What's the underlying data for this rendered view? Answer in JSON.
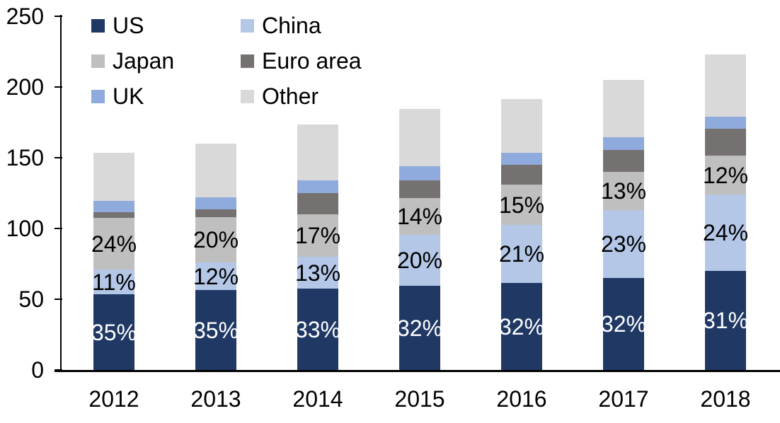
{
  "chart_data": {
    "type": "bar",
    "stacked": true,
    "title": "",
    "xlabel": "",
    "ylabel": "",
    "categories": [
      "2012",
      "2013",
      "2014",
      "2015",
      "2016",
      "2017",
      "2018"
    ],
    "series": [
      {
        "name": "US",
        "color": "#1F3864",
        "values": [
          53.5,
          56.5,
          57.5,
          59.5,
          61.5,
          65,
          70
        ],
        "labels": [
          "35%",
          "35%",
          "33%",
          "32%",
          "32%",
          "32%",
          "31%"
        ],
        "label_color": "#FFFFFF"
      },
      {
        "name": "China",
        "color": "#B4C7E7",
        "values": [
          17.5,
          19.5,
          22.5,
          36,
          41,
          48,
          54
        ],
        "labels": [
          "11%",
          "12%",
          "13%",
          "20%",
          "21%",
          "23%",
          "24%"
        ],
        "label_color": "#000000"
      },
      {
        "name": "Japan",
        "color": "#BFBFBF",
        "values": [
          36.5,
          32,
          30,
          26,
          28.5,
          27,
          27.5
        ],
        "labels": [
          "24%",
          "20%",
          "17%",
          "14%",
          "15%",
          "13%",
          "12%"
        ],
        "label_color": "#000000"
      },
      {
        "name": "Euro area",
        "color": "#767171",
        "values": [
          4,
          5.5,
          15,
          12.5,
          14,
          15.5,
          19
        ],
        "labels": null,
        "label_color": null
      },
      {
        "name": "UK",
        "color": "#8FAADC",
        "values": [
          8,
          8.5,
          9,
          10,
          8.5,
          9,
          8.5
        ],
        "labels": null,
        "label_color": null
      },
      {
        "name": "Other",
        "color": "#D9D9D9",
        "values": [
          34,
          38,
          39.5,
          40.5,
          38,
          40.5,
          44
        ],
        "labels": null,
        "label_color": null
      }
    ],
    "totals": [
      153.5,
      160,
      173.5,
      184.5,
      191.5,
      205,
      223
    ],
    "ylim": [
      0,
      250
    ],
    "yticks": [
      0,
      50,
      100,
      150,
      200,
      250
    ],
    "grid": false,
    "legend_position": "top-left-inside",
    "axis_color": "#000000",
    "background": "#FFFFFF"
  }
}
